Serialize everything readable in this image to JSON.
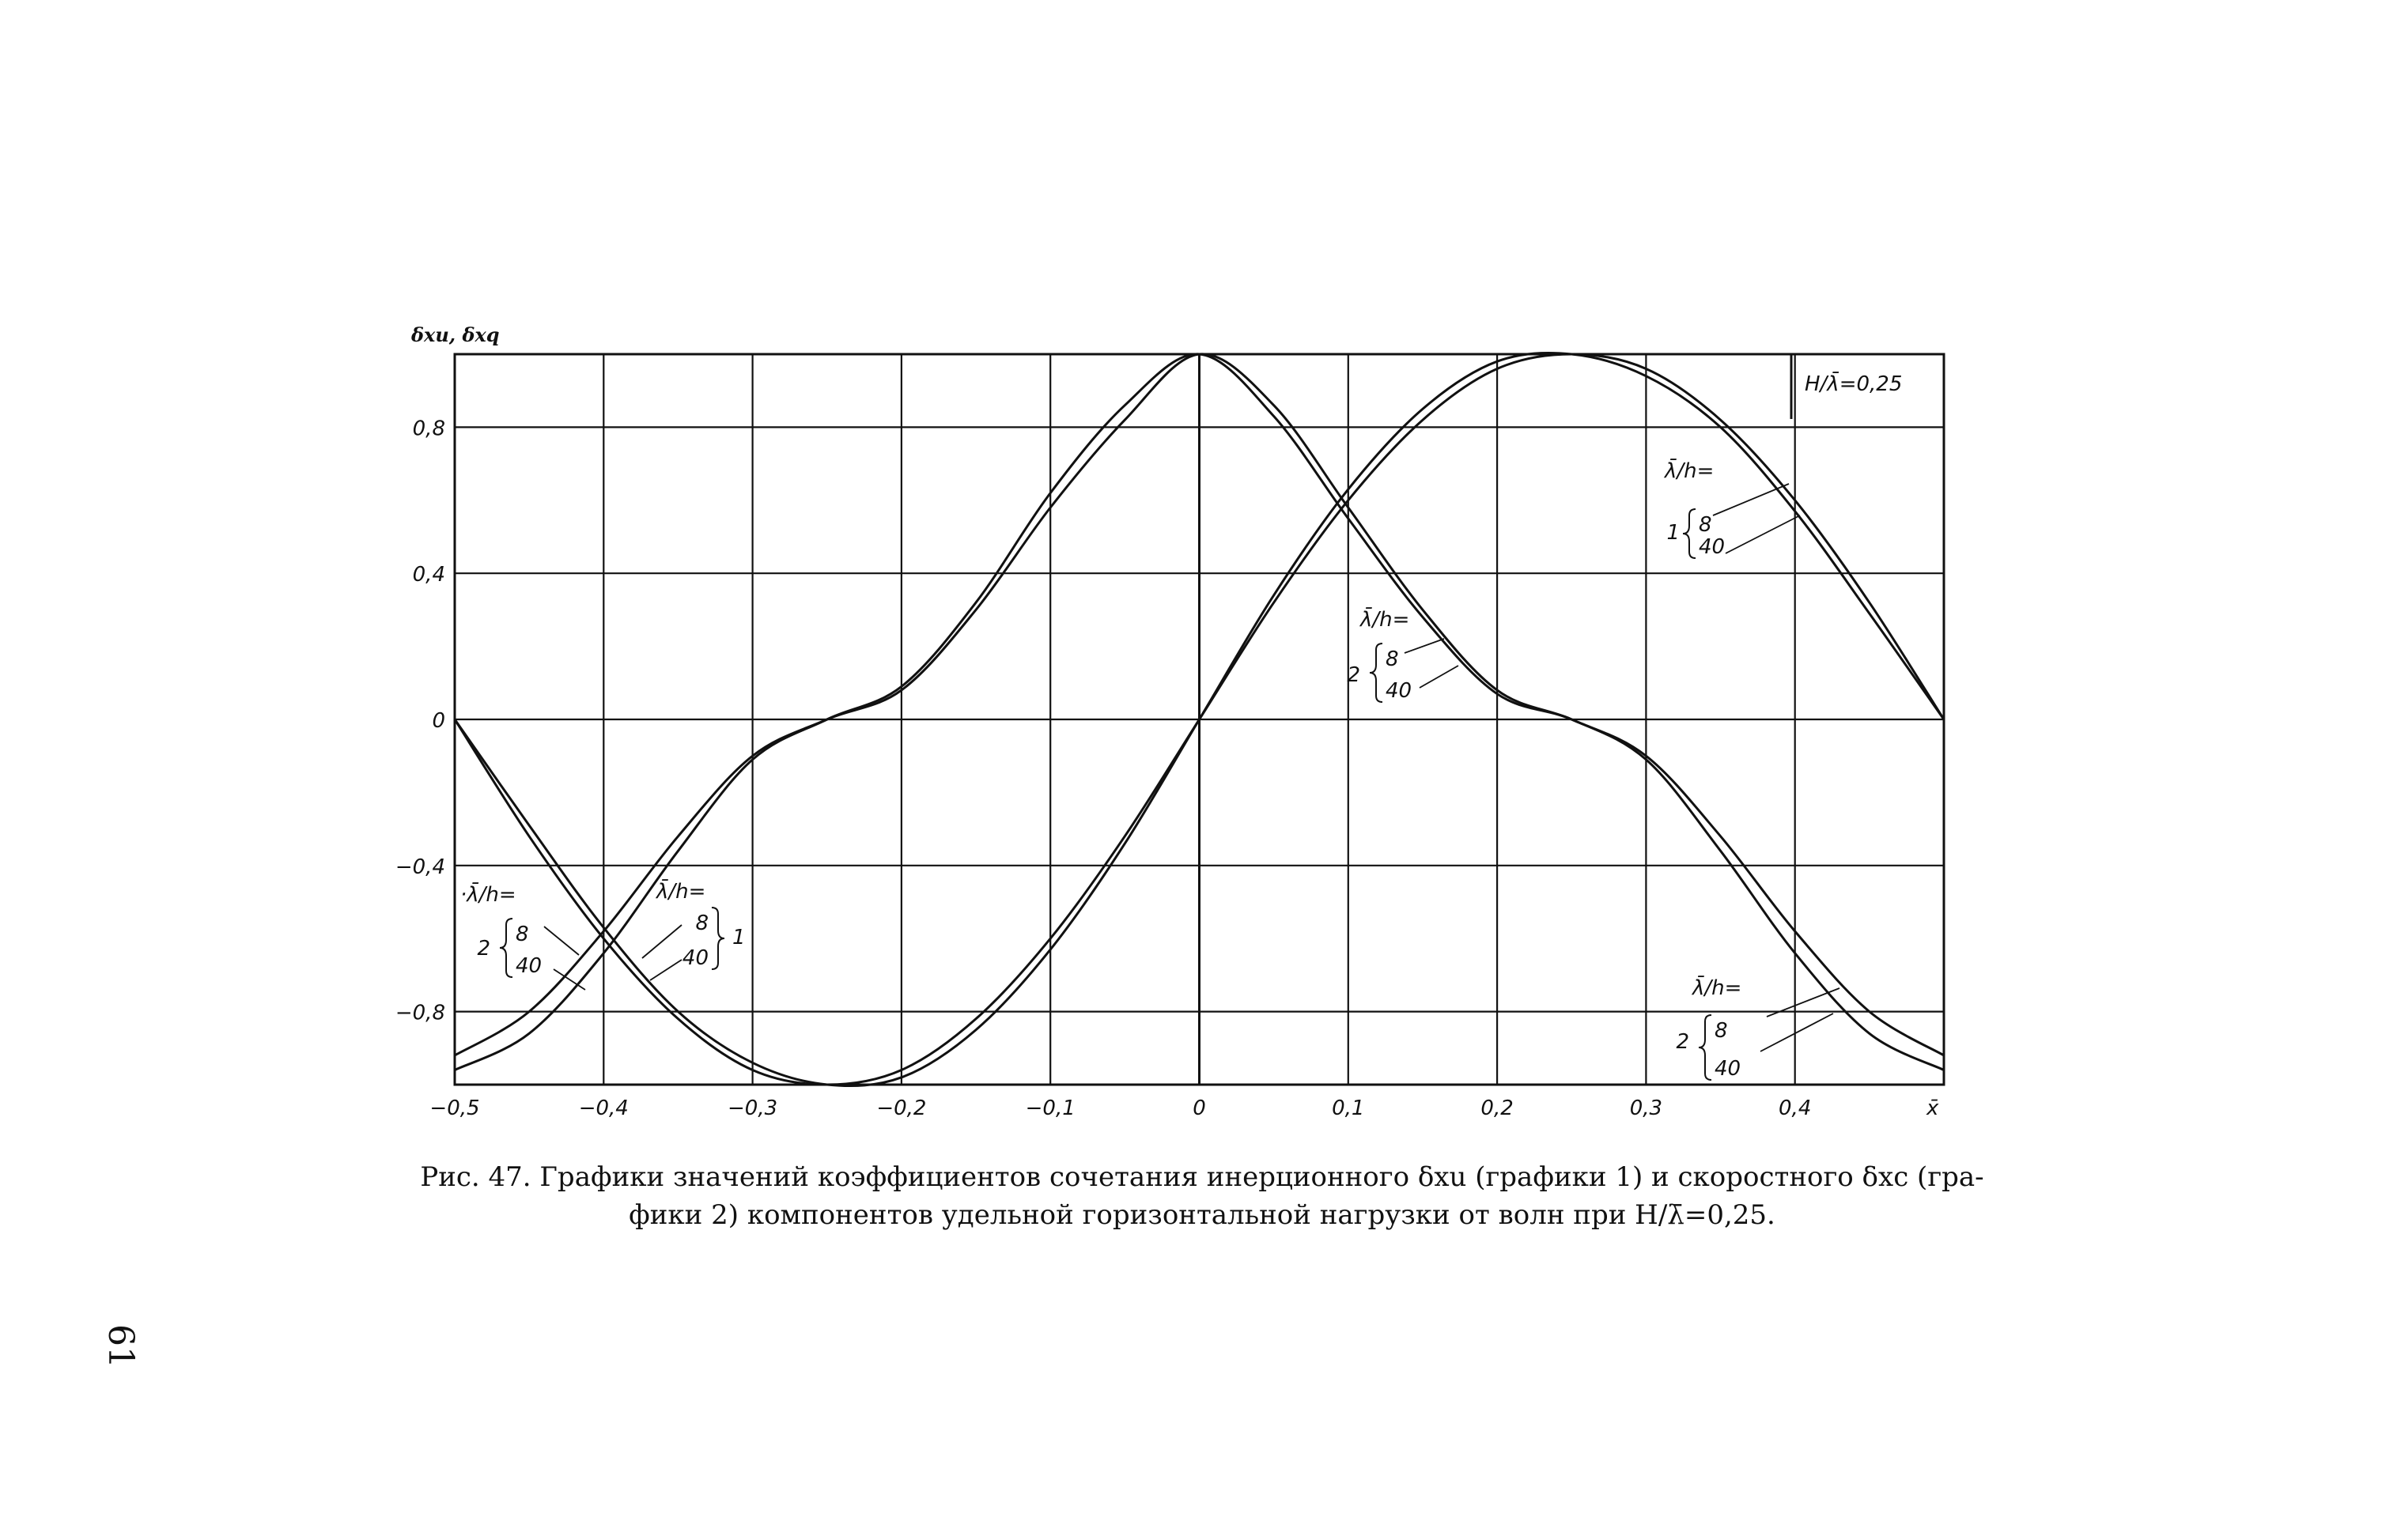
{
  "chart_data": {
    "type": "line",
    "title": "H/λ̄=0,25",
    "ylabel": "δxu, δxq",
    "xlabel": "x̄",
    "xlim": [
      -0.5,
      0.5
    ],
    "ylim": [
      -1.0,
      1.0
    ],
    "grid": true,
    "x_ticks": [
      -0.5,
      -0.4,
      -0.3,
      -0.2,
      -0.1,
      0,
      0.1,
      0.2,
      0.3,
      0.4
    ],
    "x_tick_labels": [
      "−0,5",
      "−0,4",
      "−0,3",
      "−0,2",
      "−0,1",
      "0",
      "0,1",
      "0,2",
      "0,3",
      "0,4"
    ],
    "y_ticks": [
      0.8,
      0.4,
      0,
      -0.4,
      -0.8
    ],
    "y_tick_labels": [
      "0,8",
      "0,4",
      "0",
      "−0,4",
      "−0,8"
    ],
    "series": [
      {
        "group": "1",
        "sub": "8",
        "x": [
          -0.5,
          -0.45,
          -0.4,
          -0.35,
          -0.3,
          -0.25,
          -0.2,
          -0.15,
          -0.1,
          -0.05,
          0,
          0.05,
          0.1,
          0.15,
          0.2,
          0.25,
          0.3,
          0.35,
          0.4,
          0.45,
          0.5
        ],
        "y": [
          0,
          -0.32,
          -0.6,
          -0.82,
          -0.96,
          -1.0,
          -0.96,
          -0.82,
          -0.6,
          -0.32,
          0,
          0.32,
          0.6,
          0.82,
          0.96,
          1.0,
          0.96,
          0.82,
          0.6,
          0.32,
          0
        ]
      },
      {
        "group": "1",
        "sub": "40",
        "x": [
          -0.5,
          -0.45,
          -0.4,
          -0.35,
          -0.3,
          -0.25,
          -0.2,
          -0.15,
          -0.1,
          -0.05,
          0,
          0.05,
          0.1,
          0.15,
          0.2,
          0.25,
          0.3,
          0.35,
          0.4,
          0.45,
          0.5
        ],
        "y": [
          0,
          -0.29,
          -0.57,
          -0.8,
          -0.94,
          -1.0,
          -0.98,
          -0.85,
          -0.63,
          -0.34,
          0,
          0.34,
          0.63,
          0.85,
          0.98,
          1.0,
          0.94,
          0.8,
          0.57,
          0.29,
          0
        ]
      },
      {
        "group": "2",
        "sub": "8",
        "x": [
          -0.5,
          -0.45,
          -0.4,
          -0.35,
          -0.3,
          -0.25,
          -0.2,
          -0.15,
          -0.1,
          -0.05,
          0,
          0.05,
          0.1,
          0.15,
          0.2,
          0.25,
          0.3,
          0.35,
          0.4,
          0.45,
          0.5
        ],
        "y": [
          -0.92,
          -0.8,
          -0.58,
          -0.32,
          -0.1,
          0,
          0.08,
          0.3,
          0.58,
          0.82,
          1.0,
          0.86,
          0.58,
          0.3,
          0.08,
          0,
          -0.1,
          -0.32,
          -0.58,
          -0.8,
          -0.92
        ]
      },
      {
        "group": "2",
        "sub": "40",
        "x": [
          -0.5,
          -0.45,
          -0.4,
          -0.35,
          -0.3,
          -0.25,
          -0.2,
          -0.15,
          -0.1,
          -0.05,
          0,
          0.05,
          0.1,
          0.15,
          0.2,
          0.25,
          0.3,
          0.35,
          0.4,
          0.45,
          0.5
        ],
        "y": [
          -0.96,
          -0.86,
          -0.64,
          -0.36,
          -0.11,
          0,
          0.09,
          0.32,
          0.62,
          0.86,
          1.0,
          0.83,
          0.55,
          0.28,
          0.07,
          0,
          -0.11,
          -0.36,
          -0.64,
          -0.86,
          -0.96
        ]
      }
    ],
    "annotations": [
      {
        "id": "ann-top-right",
        "lead": "λ̄/h=",
        "group": "1",
        "values": [
          "8",
          "40"
        ]
      },
      {
        "id": "ann-center",
        "lead": "λ̄/h=",
        "group": "2",
        "values": [
          "8",
          "40"
        ]
      },
      {
        "id": "ann-left-2",
        "lead": "·λ̄/h=",
        "group": "2",
        "values": [
          "8",
          "40"
        ]
      },
      {
        "id": "ann-left-1",
        "lead": "λ̄/h=",
        "group": "1",
        "values": [
          "8",
          "40"
        ]
      },
      {
        "id": "ann-bottom-right",
        "lead": "λ̄/h=",
        "group": "2",
        "values": [
          "8",
          "40"
        ]
      }
    ]
  },
  "caption": {
    "line1": "Рис. 47. Графики значений коэффициентов сочетания инерционного δxu (графики 1) и скоростного δxc (гра-",
    "line2": "фики 2) компонентов удельной горизонтальной нагрузки от волн при H/λ̄=0,25."
  },
  "page_number": "61"
}
